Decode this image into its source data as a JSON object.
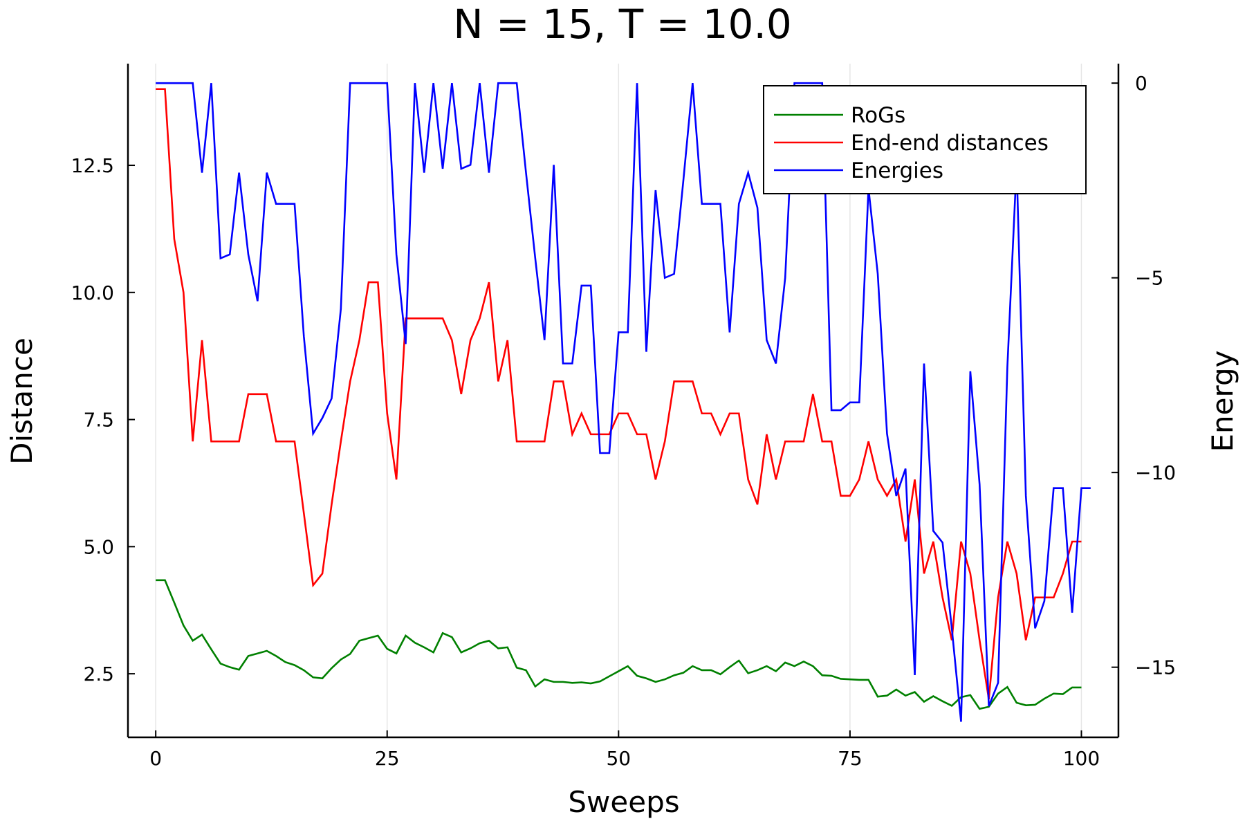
{
  "chart_data": {
    "type": "line",
    "title": "N = 15, T = 10.0",
    "xlabel": "Sweeps",
    "ylabel": "Distance",
    "y2label": "Energy",
    "xlim": [
      -3,
      104
    ],
    "ylim": [
      1.25,
      14.5
    ],
    "y2lim": [
      -16.8,
      0.5
    ],
    "xticks": [
      0,
      25,
      50,
      75,
      100
    ],
    "xtick_labels": [
      "0",
      "25",
      "50",
      "75",
      "100"
    ],
    "yticks": [
      2.5,
      5.0,
      7.5,
      10.0,
      12.5
    ],
    "ytick_labels": [
      "2.5",
      "5.0",
      "7.5",
      "10.0",
      "12.5"
    ],
    "y2ticks": [
      0,
      -5,
      -10,
      -15
    ],
    "y2tick_labels": [
      "0",
      "−5",
      "−10",
      "−15"
    ],
    "grid": "vertical",
    "legend_position": "top-right",
    "series": [
      {
        "name": "RoGs",
        "axis": "left",
        "color": "#008000",
        "values": [
          4.34,
          4.34,
          3.9,
          3.45,
          3.15,
          3.27,
          2.98,
          2.7,
          2.63,
          2.58,
          2.85,
          2.9,
          2.95,
          2.85,
          2.73,
          2.67,
          2.57,
          2.43,
          2.41,
          2.61,
          2.78,
          2.89,
          3.15,
          3.2,
          3.25,
          2.99,
          2.9,
          3.25,
          3.11,
          3.02,
          2.92,
          3.3,
          3.22,
          2.92,
          3.0,
          3.1,
          3.15,
          3.0,
          3.02,
          2.62,
          2.57,
          2.25,
          2.39,
          2.34,
          2.34,
          2.32,
          2.33,
          2.31,
          2.35,
          2.45,
          2.55,
          2.65,
          2.46,
          2.41,
          2.34,
          2.39,
          2.47,
          2.52,
          2.65,
          2.57,
          2.57,
          2.49,
          2.63,
          2.76,
          2.51,
          2.57,
          2.65,
          2.55,
          2.72,
          2.65,
          2.74,
          2.65,
          2.47,
          2.46,
          2.4,
          2.39,
          2.38,
          2.38,
          2.05,
          2.07,
          2.19,
          2.07,
          2.14,
          1.95,
          2.06,
          1.96,
          1.87,
          2.04,
          2.08,
          1.81,
          1.85,
          2.11,
          2.24,
          1.93,
          1.88,
          1.89,
          2.01,
          2.11,
          2.1,
          2.23,
          2.23
        ]
      },
      {
        "name": "End-end distances",
        "axis": "left",
        "color": "#ff0000",
        "values": [
          14.0,
          14.0,
          11.05,
          10.0,
          7.07,
          9.06,
          7.07,
          7.07,
          7.07,
          7.07,
          8.0,
          8.0,
          8.0,
          7.07,
          7.07,
          7.07,
          5.66,
          4.24,
          4.47,
          5.83,
          7.07,
          8.25,
          9.06,
          10.2,
          10.2,
          7.62,
          6.32,
          9.49,
          9.49,
          9.49,
          9.49,
          9.49,
          9.06,
          8.0,
          9.06,
          9.49,
          10.2,
          8.25,
          9.06,
          7.07,
          7.07,
          7.07,
          7.07,
          8.25,
          8.25,
          7.21,
          7.62,
          7.21,
          7.21,
          7.21,
          7.62,
          7.62,
          7.21,
          7.21,
          6.32,
          7.07,
          8.25,
          8.25,
          8.25,
          7.62,
          7.62,
          7.21,
          7.62,
          7.62,
          6.32,
          5.83,
          7.21,
          6.32,
          7.07,
          7.07,
          7.07,
          8.0,
          7.07,
          7.07,
          6.0,
          6.0,
          6.32,
          7.07,
          6.32,
          6.0,
          6.32,
          5.1,
          6.32,
          4.47,
          5.1,
          4.0,
          3.16,
          5.1,
          4.47,
          3.16,
          2.0,
          4.0,
          5.1,
          4.47,
          3.16,
          4.0,
          4.0,
          4.0,
          4.47,
          5.1,
          5.1
        ]
      },
      {
        "name": "Energies",
        "axis": "right",
        "color": "#0000ff",
        "values": [
          0,
          0,
          0,
          0,
          0,
          -2.3,
          0,
          -4.5,
          -4.4,
          -2.3,
          -4.4,
          -5.6,
          -2.3,
          -3.1,
          -3.1,
          -3.1,
          -6.5,
          -9.0,
          -8.6,
          -8.1,
          -5.8,
          0,
          0,
          0,
          0,
          0,
          -4.4,
          -6.7,
          0,
          -2.3,
          0,
          -2.2,
          0,
          -2.2,
          -2.1,
          0,
          -2.3,
          0,
          0,
          0,
          -2.3,
          -4.5,
          -6.6,
          -2.1,
          -7.2,
          -7.2,
          -5.2,
          -5.2,
          -9.5,
          -9.5,
          -6.4,
          -6.4,
          0,
          -6.9,
          -2.75,
          -5.0,
          -4.9,
          -2.5,
          0,
          -3.1,
          -3.1,
          -3.1,
          -6.4,
          -3.1,
          -2.3,
          -3.2,
          -6.6,
          -7.2,
          -5.0,
          0,
          0,
          0,
          0,
          -8.4,
          -8.4,
          -8.2,
          -8.2,
          -2.7,
          -4.9,
          -9.0,
          -10.6,
          -9.9,
          -15.2,
          -7.2,
          -11.5,
          -11.8,
          -14.0,
          -16.4,
          -7.4,
          -10.3,
          -16.0,
          -15.4,
          -7.3,
          -2.1,
          -10.6,
          -14.0,
          -13.3,
          -10.4,
          -10.4,
          -13.6,
          -10.4,
          -10.4
        ]
      }
    ]
  }
}
